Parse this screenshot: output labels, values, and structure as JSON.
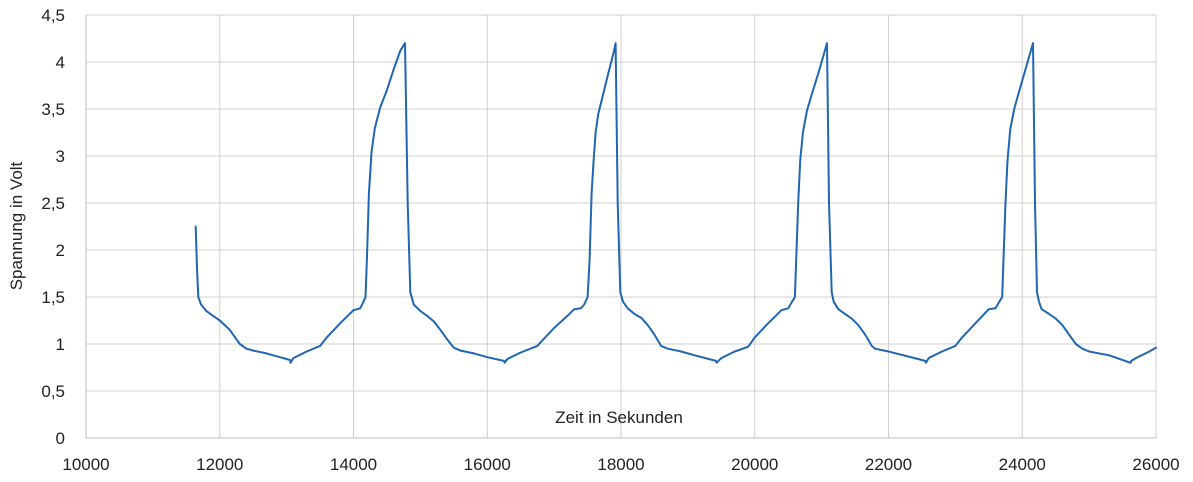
{
  "chart_data": {
    "type": "line",
    "title": "",
    "xlabel": "Zeit in Sekunden",
    "ylabel": "Spannung in Volt",
    "xlim": [
      10000,
      26000
    ],
    "ylim": [
      0,
      4.5
    ],
    "grid": true,
    "line_color": "#1f66b3",
    "x_ticks": [
      {
        "value": 10000,
        "label": "10000"
      },
      {
        "value": 12000,
        "label": "12000"
      },
      {
        "value": 14000,
        "label": "14000"
      },
      {
        "value": 16000,
        "label": "16000"
      },
      {
        "value": 18000,
        "label": "18000"
      },
      {
        "value": 20000,
        "label": "20000"
      },
      {
        "value": 22000,
        "label": "22000"
      },
      {
        "value": 24000,
        "label": "24000"
      },
      {
        "value": 26000,
        "label": "26000"
      }
    ],
    "y_ticks": [
      {
        "value": 0,
        "label": "0"
      },
      {
        "value": 0.5,
        "label": "0,5"
      },
      {
        "value": 1,
        "label": "1"
      },
      {
        "value": 1.5,
        "label": "1,5"
      },
      {
        "value": 2,
        "label": "2"
      },
      {
        "value": 2.5,
        "label": "2,5"
      },
      {
        "value": 3,
        "label": "3"
      },
      {
        "value": 3.5,
        "label": "3,5"
      },
      {
        "value": 4,
        "label": "4"
      },
      {
        "value": 4.5,
        "label": "4,5"
      }
    ],
    "series": [
      {
        "name": "",
        "x": [
          11640,
          11660,
          11680,
          11720,
          11800,
          11900,
          12000,
          12150,
          12300,
          12400,
          12500,
          12700,
          12900,
          13050,
          13060,
          13100,
          13300,
          13500,
          13600,
          13800,
          14000,
          14100,
          14150,
          14180,
          14200,
          14230,
          14270,
          14320,
          14400,
          14500,
          14600,
          14700,
          14770,
          14810,
          14850,
          14900,
          15000,
          15100,
          15200,
          15300,
          15400,
          15500,
          15600,
          15800,
          16000,
          16250,
          16260,
          16300,
          16500,
          16750,
          16800,
          17000,
          17200,
          17300,
          17400,
          17450,
          17500,
          17530,
          17560,
          17590,
          17620,
          17660,
          17720,
          17800,
          17890,
          17920,
          17950,
          17990,
          18030,
          18100,
          18200,
          18300,
          18400,
          18500,
          18600,
          18700,
          18900,
          19100,
          19420,
          19430,
          19500,
          19700,
          19900,
          20000,
          20200,
          20400,
          20500,
          20550,
          20600,
          20620,
          20650,
          20680,
          20720,
          20780,
          20850,
          20950,
          21040,
          21080,
          21110,
          21150,
          21180,
          21250,
          21350,
          21450,
          21550,
          21650,
          21750,
          21800,
          22000,
          22550,
          22560,
          22600,
          22800,
          23000,
          23100,
          23300,
          23500,
          23600,
          23650,
          23700,
          23720,
          23750,
          23780,
          23820,
          23880,
          23950,
          24040,
          24160,
          24190,
          24220,
          24250,
          24290,
          24400,
          24500,
          24600,
          24700,
          24800,
          24900,
          25000,
          25300,
          25620,
          25630,
          25700,
          25900,
          26000
        ],
        "y": [
          2.25,
          1.8,
          1.5,
          1.42,
          1.35,
          1.3,
          1.25,
          1.15,
          1.0,
          0.95,
          0.93,
          0.9,
          0.86,
          0.83,
          0.8,
          0.85,
          0.92,
          0.98,
          1.07,
          1.22,
          1.36,
          1.38,
          1.45,
          1.5,
          1.9,
          2.6,
          3.05,
          3.3,
          3.52,
          3.7,
          3.92,
          4.12,
          4.2,
          2.5,
          1.55,
          1.42,
          1.35,
          1.3,
          1.24,
          1.15,
          1.05,
          0.96,
          0.93,
          0.9,
          0.86,
          0.82,
          0.8,
          0.84,
          0.91,
          0.98,
          1.02,
          1.17,
          1.3,
          1.37,
          1.38,
          1.42,
          1.5,
          1.9,
          2.6,
          2.95,
          3.25,
          3.45,
          3.62,
          3.85,
          4.1,
          4.2,
          2.5,
          1.55,
          1.45,
          1.38,
          1.32,
          1.28,
          1.2,
          1.1,
          0.98,
          0.95,
          0.92,
          0.88,
          0.82,
          0.8,
          0.85,
          0.92,
          0.97,
          1.07,
          1.22,
          1.36,
          1.38,
          1.44,
          1.5,
          1.9,
          2.5,
          2.95,
          3.25,
          3.48,
          3.65,
          3.88,
          4.1,
          4.2,
          2.5,
          1.55,
          1.45,
          1.37,
          1.32,
          1.27,
          1.2,
          1.1,
          0.98,
          0.95,
          0.92,
          0.82,
          0.8,
          0.85,
          0.92,
          0.98,
          1.07,
          1.22,
          1.37,
          1.38,
          1.44,
          1.5,
          1.9,
          2.5,
          2.95,
          3.28,
          3.5,
          3.68,
          3.9,
          4.2,
          2.5,
          1.55,
          1.45,
          1.37,
          1.32,
          1.27,
          1.2,
          1.1,
          1.0,
          0.95,
          0.92,
          0.88,
          0.8,
          0.82,
          0.85,
          0.92,
          0.96
        ]
      }
    ]
  }
}
